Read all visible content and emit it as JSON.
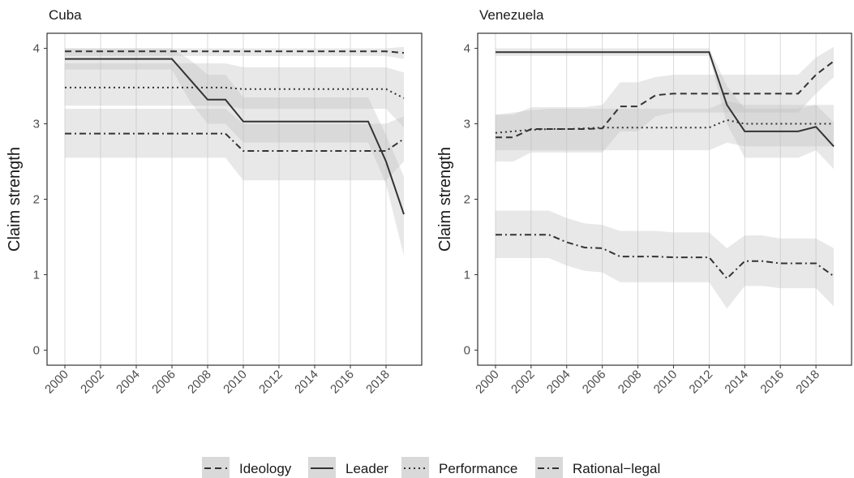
{
  "chart_data": [
    {
      "type": "line",
      "title": "Cuba",
      "y_label": "Claim strength",
      "x": [
        2000,
        2001,
        2002,
        2003,
        2004,
        2005,
        2006,
        2007,
        2008,
        2009,
        2010,
        2011,
        2012,
        2013,
        2014,
        2015,
        2016,
        2017,
        2018,
        2019
      ],
      "xlim": [
        1999,
        2020
      ],
      "xticks": [
        2000,
        2002,
        2004,
        2006,
        2008,
        2010,
        2012,
        2014,
        2016,
        2018
      ],
      "ylim": [
        -0.2,
        4.2
      ],
      "yticks": [
        0,
        1,
        2,
        3,
        4
      ],
      "grid": true,
      "series": [
        {
          "name": "Ideology",
          "color": "#333333",
          "linetype": "dashed",
          "values": [
            3.96,
            3.96,
            3.96,
            3.96,
            3.96,
            3.96,
            3.96,
            3.96,
            3.96,
            3.96,
            3.96,
            3.96,
            3.96,
            3.96,
            3.96,
            3.96,
            3.96,
            3.96,
            3.96,
            3.94
          ],
          "lower": [
            3.9,
            3.9,
            3.9,
            3.9,
            3.9,
            3.9,
            3.9,
            3.9,
            3.9,
            3.9,
            3.9,
            3.9,
            3.9,
            3.9,
            3.9,
            3.9,
            3.9,
            3.9,
            3.9,
            3.86
          ],
          "upper": [
            4.0,
            4.0,
            4.0,
            4.0,
            4.0,
            4.0,
            4.0,
            4.0,
            4.0,
            4.0,
            4.0,
            4.0,
            4.0,
            4.0,
            4.0,
            4.0,
            4.0,
            4.0,
            4.0,
            4.02
          ]
        },
        {
          "name": "Leader",
          "color": "#333333",
          "linetype": "solid",
          "values": [
            3.86,
            3.86,
            3.86,
            3.86,
            3.86,
            3.86,
            3.86,
            3.59,
            3.32,
            3.32,
            3.03,
            3.03,
            3.03,
            3.03,
            3.03,
            3.03,
            3.03,
            3.03,
            2.5,
            1.8
          ],
          "lower": [
            3.72,
            3.72,
            3.72,
            3.72,
            3.72,
            3.72,
            3.72,
            3.3,
            3.0,
            3.0,
            2.75,
            2.75,
            2.75,
            2.75,
            2.75,
            2.75,
            2.75,
            2.75,
            2.2,
            1.25
          ],
          "upper": [
            4.0,
            4.0,
            4.0,
            4.0,
            4.0,
            4.0,
            4.0,
            3.85,
            3.65,
            3.65,
            3.35,
            3.35,
            3.35,
            3.35,
            3.35,
            3.35,
            3.35,
            3.35,
            2.85,
            2.3
          ]
        },
        {
          "name": "Performance",
          "color": "#333333",
          "linetype": "dotted",
          "values": [
            3.48,
            3.48,
            3.48,
            3.48,
            3.48,
            3.48,
            3.48,
            3.48,
            3.48,
            3.48,
            3.46,
            3.46,
            3.46,
            3.46,
            3.46,
            3.46,
            3.46,
            3.46,
            3.46,
            3.34
          ],
          "lower": [
            3.24,
            3.24,
            3.24,
            3.24,
            3.24,
            3.24,
            3.24,
            3.24,
            3.24,
            3.24,
            3.2,
            3.2,
            3.2,
            3.2,
            3.2,
            3.2,
            3.2,
            3.2,
            3.2,
            2.95
          ],
          "upper": [
            3.8,
            3.8,
            3.8,
            3.8,
            3.8,
            3.8,
            3.8,
            3.8,
            3.8,
            3.8,
            3.75,
            3.75,
            3.75,
            3.75,
            3.75,
            3.75,
            3.75,
            3.75,
            3.75,
            3.68
          ]
        },
        {
          "name": "Rational−legal",
          "color": "#333333",
          "linetype": "dotdash",
          "values": [
            2.87,
            2.87,
            2.87,
            2.87,
            2.87,
            2.87,
            2.87,
            2.87,
            2.87,
            2.87,
            2.64,
            2.64,
            2.64,
            2.64,
            2.64,
            2.64,
            2.64,
            2.64,
            2.64,
            2.8
          ],
          "lower": [
            2.55,
            2.55,
            2.55,
            2.55,
            2.55,
            2.55,
            2.55,
            2.55,
            2.55,
            2.55,
            2.25,
            2.25,
            2.25,
            2.25,
            2.25,
            2.25,
            2.25,
            2.25,
            2.25,
            2.5
          ],
          "upper": [
            3.2,
            3.2,
            3.2,
            3.2,
            3.2,
            3.2,
            3.2,
            3.2,
            3.2,
            3.2,
            3.0,
            3.0,
            3.0,
            3.0,
            3.0,
            3.0,
            3.0,
            3.0,
            3.0,
            3.1
          ]
        }
      ]
    },
    {
      "type": "line",
      "title": "Venezuela",
      "y_label": "Claim strength",
      "x": [
        2000,
        2001,
        2002,
        2003,
        2004,
        2005,
        2006,
        2007,
        2008,
        2009,
        2010,
        2011,
        2012,
        2013,
        2014,
        2015,
        2016,
        2017,
        2018,
        2019
      ],
      "xlim": [
        1999,
        2020
      ],
      "xticks": [
        2000,
        2002,
        2004,
        2006,
        2008,
        2010,
        2012,
        2014,
        2016,
        2018
      ],
      "ylim": [
        -0.2,
        4.2
      ],
      "yticks": [
        0,
        1,
        2,
        3,
        4
      ],
      "grid": true,
      "series": [
        {
          "name": "Ideology",
          "color": "#333333",
          "linetype": "dashed",
          "values": [
            2.82,
            2.82,
            2.93,
            2.93,
            2.93,
            2.93,
            2.94,
            3.23,
            3.23,
            3.38,
            3.4,
            3.4,
            3.4,
            3.4,
            3.4,
            3.4,
            3.4,
            3.4,
            3.65,
            3.83
          ],
          "lower": [
            2.5,
            2.5,
            2.62,
            2.62,
            2.62,
            2.62,
            2.62,
            2.9,
            2.9,
            3.1,
            3.15,
            3.15,
            3.15,
            3.15,
            3.15,
            3.15,
            3.15,
            3.15,
            3.4,
            3.62
          ],
          "upper": [
            3.12,
            3.12,
            3.22,
            3.22,
            3.22,
            3.22,
            3.25,
            3.55,
            3.55,
            3.62,
            3.65,
            3.65,
            3.65,
            3.65,
            3.65,
            3.65,
            3.65,
            3.65,
            3.88,
            4.02
          ]
        },
        {
          "name": "Leader",
          "color": "#333333",
          "linetype": "solid",
          "values": [
            3.95,
            3.95,
            3.95,
            3.95,
            3.95,
            3.95,
            3.95,
            3.95,
            3.95,
            3.95,
            3.95,
            3.95,
            3.95,
            3.25,
            2.9,
            2.9,
            2.9,
            2.9,
            2.96,
            2.7
          ],
          "lower": [
            3.9,
            3.9,
            3.9,
            3.9,
            3.9,
            3.9,
            3.9,
            3.9,
            3.9,
            3.9,
            3.9,
            3.9,
            3.9,
            3.0,
            2.55,
            2.55,
            2.55,
            2.55,
            2.65,
            2.4
          ],
          "upper": [
            4.0,
            4.0,
            4.0,
            4.0,
            4.0,
            4.0,
            4.0,
            4.0,
            4.0,
            4.0,
            4.0,
            4.0,
            4.0,
            3.5,
            3.2,
            3.2,
            3.2,
            3.2,
            3.25,
            3.02
          ]
        },
        {
          "name": "Performance",
          "color": "#333333",
          "linetype": "dotted",
          "values": [
            2.88,
            2.9,
            2.92,
            2.93,
            2.93,
            2.94,
            2.95,
            2.95,
            2.95,
            2.95,
            2.95,
            2.95,
            2.95,
            3.05,
            3.0,
            3.0,
            3.0,
            3.0,
            3.0,
            3.0
          ],
          "lower": [
            2.65,
            2.65,
            2.65,
            2.65,
            2.65,
            2.65,
            2.65,
            2.65,
            2.65,
            2.65,
            2.65,
            2.65,
            2.65,
            2.75,
            2.7,
            2.7,
            2.7,
            2.7,
            2.7,
            2.7
          ],
          "upper": [
            3.12,
            3.15,
            3.18,
            3.2,
            3.2,
            3.2,
            3.2,
            3.2,
            3.2,
            3.2,
            3.2,
            3.2,
            3.2,
            3.3,
            3.25,
            3.25,
            3.25,
            3.25,
            3.25,
            3.25
          ]
        },
        {
          "name": "Rational−legal",
          "color": "#333333",
          "linetype": "dotdash",
          "values": [
            1.53,
            1.53,
            1.53,
            1.53,
            1.43,
            1.36,
            1.35,
            1.24,
            1.24,
            1.24,
            1.23,
            1.23,
            1.23,
            0.95,
            1.18,
            1.18,
            1.15,
            1.15,
            1.15,
            0.98
          ],
          "lower": [
            1.22,
            1.22,
            1.22,
            1.22,
            1.12,
            1.05,
            1.03,
            0.9,
            0.9,
            0.9,
            0.9,
            0.9,
            0.9,
            0.55,
            0.85,
            0.85,
            0.82,
            0.82,
            0.82,
            0.58
          ],
          "upper": [
            1.85,
            1.85,
            1.85,
            1.85,
            1.75,
            1.68,
            1.66,
            1.58,
            1.58,
            1.58,
            1.56,
            1.56,
            1.56,
            1.35,
            1.52,
            1.52,
            1.48,
            1.48,
            1.48,
            1.35
          ]
        }
      ]
    }
  ]
}
